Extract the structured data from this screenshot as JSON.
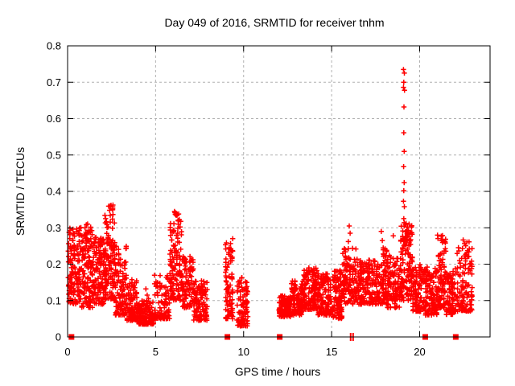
{
  "chart_data": {
    "type": "scatter",
    "title": "Day 049 of 2016, SRMTID for receiver tnhm",
    "xlabel": "GPS time / hours",
    "ylabel": "SRMTID / TECUs",
    "xlim": [
      0,
      24
    ],
    "ylim": [
      0,
      0.8
    ],
    "xtick_values": [
      0,
      5,
      10,
      15,
      20
    ],
    "xtick_labels": [
      "0",
      "5",
      "10",
      "15",
      "20"
    ],
    "ytick_values": [
      0,
      0.1,
      0.2,
      0.3,
      0.4,
      0.5,
      0.6,
      0.7,
      0.8
    ],
    "ytick_labels": [
      "0",
      "0.1",
      "0.2",
      "0.3",
      "0.4",
      "0.5",
      "0.6",
      "0.7",
      "0.8"
    ],
    "grid": true,
    "grid_color": "#b0b0b0",
    "marker": "plus",
    "marker_color": "#ff0000",
    "border_color": "#000000",
    "legend": "none",
    "seed": 49,
    "series_summary": "Dense red plus-marker scatter of SRMTID vs GPS time; envelope segments give [x_start, x_end, n_points, y_min, y_max, low_skew]",
    "segments": [
      [
        0.02,
        0.7,
        130,
        0.09,
        0.3,
        1.3
      ],
      [
        0.7,
        1.5,
        150,
        0.08,
        0.315,
        1.2
      ],
      [
        1.5,
        2.1,
        120,
        0.09,
        0.275,
        1.2
      ],
      [
        2.1,
        2.7,
        130,
        0.1,
        0.365,
        1.3
      ],
      [
        2.7,
        3.35,
        110,
        0.06,
        0.25,
        1.5
      ],
      [
        3.35,
        3.95,
        90,
        0.045,
        0.16,
        1.8
      ],
      [
        3.95,
        4.9,
        150,
        0.035,
        0.1,
        1.6
      ],
      [
        4.9,
        5.8,
        100,
        0.05,
        0.17,
        1.8
      ],
      [
        5.8,
        6.5,
        130,
        0.1,
        0.345,
        1.2
      ],
      [
        6.5,
        7.15,
        90,
        0.08,
        0.225,
        1.4
      ],
      [
        7.15,
        7.95,
        110,
        0.045,
        0.155,
        1.5
      ],
      [
        8.95,
        9.4,
        85,
        0.05,
        0.27,
        1.8
      ],
      [
        9.6,
        10.25,
        90,
        0.03,
        0.165,
        1.5
      ],
      [
        12.0,
        12.7,
        120,
        0.055,
        0.115,
        1.2
      ],
      [
        12.7,
        13.4,
        115,
        0.06,
        0.155,
        1.3
      ],
      [
        13.4,
        14.2,
        125,
        0.075,
        0.19,
        1.3
      ],
      [
        14.2,
        15.05,
        125,
        0.06,
        0.175,
        1.3
      ],
      [
        15.05,
        15.6,
        100,
        0.05,
        0.185,
        1.4
      ],
      [
        15.6,
        16.4,
        120,
        0.09,
        0.245,
        1.4
      ],
      [
        16.4,
        17.6,
        160,
        0.09,
        0.215,
        1.3
      ],
      [
        17.6,
        18.15,
        85,
        0.09,
        0.25,
        1.4
      ],
      [
        18.15,
        18.9,
        110,
        0.08,
        0.225,
        1.4
      ],
      [
        18.9,
        19.6,
        130,
        0.1,
        0.315,
        1.3
      ],
      [
        19.6,
        20.3,
        110,
        0.07,
        0.2,
        1.4
      ],
      [
        20.3,
        21.0,
        110,
        0.06,
        0.195,
        1.4
      ],
      [
        21.0,
        21.5,
        90,
        0.08,
        0.295,
        1.6
      ],
      [
        21.5,
        22.0,
        80,
        0.06,
        0.18,
        1.4
      ],
      [
        22.0,
        23.0,
        130,
        0.07,
        0.27,
        1.6
      ]
    ],
    "outliers": [
      [
        19.08,
        0.735
      ],
      [
        19.13,
        0.725
      ],
      [
        19.1,
        0.7
      ],
      [
        19.08,
        0.686
      ],
      [
        19.14,
        0.678
      ],
      [
        19.11,
        0.632
      ],
      [
        19.1,
        0.561
      ],
      [
        19.12,
        0.51
      ],
      [
        19.09,
        0.468
      ],
      [
        19.12,
        0.424
      ],
      [
        19.1,
        0.402
      ],
      [
        19.08,
        0.373
      ],
      [
        19.13,
        0.358
      ],
      [
        19.1,
        0.325
      ],
      [
        19.12,
        0.314
      ],
      [
        18.5,
        0.278
      ],
      [
        17.82,
        0.29
      ],
      [
        17.88,
        0.265
      ],
      [
        16.0,
        0.305
      ],
      [
        16.05,
        0.285
      ],
      [
        15.95,
        0.262
      ],
      [
        9.38,
        0.27
      ],
      [
        4.45,
        0.132
      ],
      [
        4.52,
        0.115
      ],
      [
        4.6,
        0.105
      ],
      [
        2.42,
        0.36
      ],
      [
        6.1,
        0.342
      ],
      [
        6.22,
        0.335
      ]
    ],
    "zero_blocks": [
      0.22,
      9.08,
      12.05,
      20.32,
      22.05
    ],
    "zero_ticks": [
      16.08,
      16.22
    ]
  }
}
